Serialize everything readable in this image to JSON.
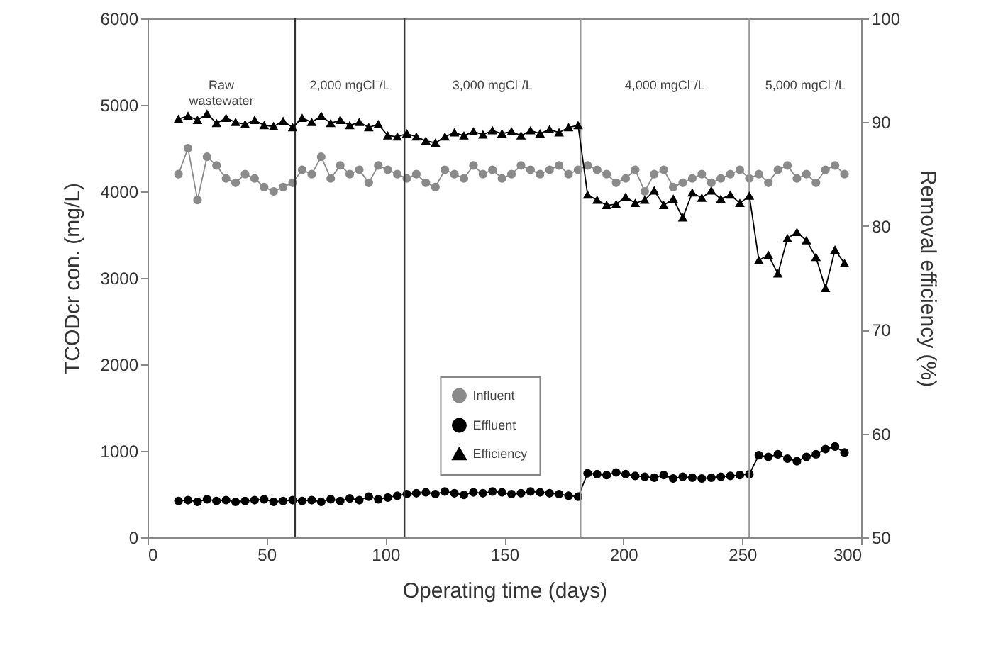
{
  "chart_data": {
    "type": "line",
    "xlabel": "Operating time (days)",
    "ylabel": "TCODcr con. (mg/L)",
    "y2label": "Removal efficiency (%)",
    "x": [
      13,
      17,
      21,
      25,
      29,
      33,
      37,
      41,
      45,
      49,
      53,
      57,
      61,
      65,
      69,
      73,
      77,
      81,
      85,
      89,
      93,
      97,
      101,
      105,
      109,
      113,
      117,
      121,
      125,
      129,
      133,
      137,
      141,
      145,
      149,
      153,
      157,
      161,
      165,
      169,
      173,
      177,
      181,
      185,
      189,
      193,
      197,
      201,
      205,
      209,
      213,
      217,
      221,
      225,
      229,
      233,
      237,
      241,
      245,
      249,
      253,
      257,
      261,
      265,
      269,
      273,
      277,
      281,
      285,
      289,
      293
    ],
    "series": [
      {
        "name": "Influent",
        "color": "#8a8a8a",
        "marker": "circle",
        "values": [
          4200,
          4500,
          3900,
          4400,
          4300,
          4150,
          4100,
          4200,
          4150,
          4050,
          4000,
          4050,
          4100,
          4250,
          4200,
          4400,
          4150,
          4300,
          4200,
          4250,
          4100,
          4300,
          4250,
          4200,
          4150,
          4200,
          4100,
          4050,
          4250,
          4200,
          4150,
          4300,
          4200,
          4250,
          4150,
          4200,
          4300,
          4250,
          4200,
          4250,
          4300,
          4200,
          4250,
          4300,
          4250,
          4200,
          4100,
          4150,
          4250,
          4000,
          4200,
          4250,
          4050,
          4100,
          4150,
          4200,
          4100,
          4150,
          4200,
          4250,
          4150,
          4200,
          4100,
          4250,
          4300,
          4150,
          4200,
          4100,
          4250,
          4300,
          4200
        ]
      },
      {
        "name": "Effluent",
        "color": "#000000",
        "marker": "circle",
        "values": [
          420,
          430,
          410,
          440,
          420,
          430,
          410,
          420,
          430,
          440,
          410,
          420,
          430,
          420,
          430,
          410,
          440,
          420,
          450,
          430,
          470,
          440,
          460,
          480,
          500,
          510,
          520,
          500,
          530,
          510,
          490,
          520,
          510,
          530,
          520,
          500,
          510,
          530,
          520,
          510,
          500,
          480,
          470,
          740,
          730,
          720,
          750,
          730,
          710,
          700,
          690,
          720,
          680,
          700,
          690,
          680,
          690,
          700,
          710,
          720,
          730,
          950,
          930,
          960,
          910,
          880,
          930,
          960,
          1020,
          1050,
          980
        ]
      },
      {
        "name": "Efficiency",
        "color": "#000000",
        "marker": "triangle",
        "axis": "y2",
        "values": [
          90.3,
          90.6,
          90.2,
          90.8,
          89.9,
          90.4,
          90.0,
          89.8,
          90.2,
          89.7,
          89.6,
          90.1,
          89.5,
          90.4,
          90.0,
          90.6,
          89.9,
          90.2,
          89.7,
          90.0,
          89.5,
          89.8,
          88.7,
          88.6,
          88.9,
          88.6,
          88.2,
          88.0,
          88.6,
          89.0,
          88.7,
          89.1,
          88.8,
          89.2,
          88.9,
          89.1,
          88.7,
          89.2,
          88.9,
          89.3,
          89.0,
          89.5,
          89.7,
          83.0,
          82.5,
          82.0,
          82.1,
          82.8,
          82.2,
          82.5,
          83.4,
          82.0,
          82.6,
          80.8,
          83.2,
          82.7,
          83.4,
          82.6,
          83.0,
          82.2,
          82.9,
          76.7,
          77.2,
          75.4,
          78.8,
          79.4,
          78.6,
          77.0,
          74.0,
          77.7,
          76.4
        ]
      }
    ],
    "xlim": [
      0,
      300
    ],
    "xticks": [
      0,
      50,
      100,
      150,
      200,
      250,
      300
    ],
    "ylim": [
      0,
      6000
    ],
    "yticks": [
      0,
      1000,
      2000,
      3000,
      4000,
      5000,
      6000
    ],
    "y2lim": [
      50,
      100
    ],
    "y2ticks": [
      50,
      60,
      70,
      80,
      90,
      100
    ],
    "ref_lines": [
      {
        "axis": "x",
        "value": 62,
        "color": "#333333"
      },
      {
        "axis": "x",
        "value": 108,
        "color": "#333333"
      },
      {
        "axis": "x",
        "value": 182,
        "color": "#999999"
      },
      {
        "axis": "x",
        "value": 253,
        "color": "#999999"
      }
    ],
    "annotations": [
      "Raw\nwastewater",
      "2,000 mgCl⁻/L",
      "3,000 mgCl⁻/L",
      "4,000 mgCl⁻/L",
      "5,000 mgCl⁻/L"
    ],
    "legend": "center",
    "line_style": "solid",
    "grid": false
  }
}
